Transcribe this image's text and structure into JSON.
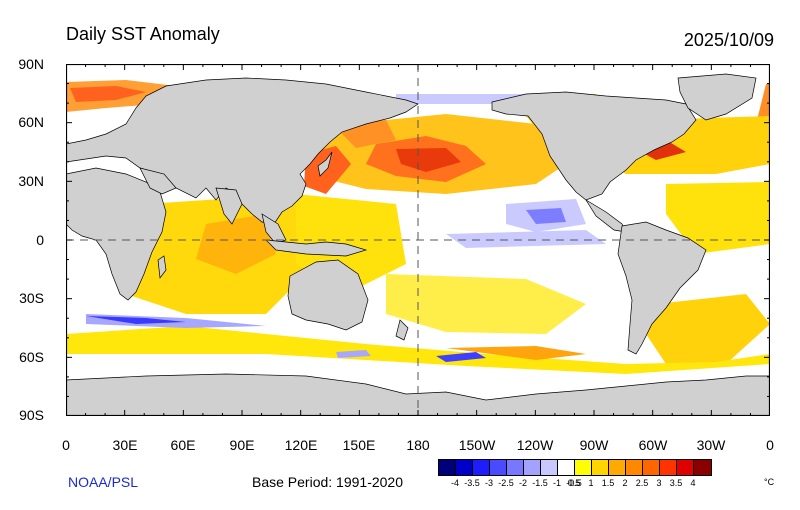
{
  "title": "Daily SST Anomaly",
  "date": "2025/10/09",
  "lat_labels": [
    "90N",
    "60N",
    "30N",
    "0",
    "30S",
    "60S",
    "90S"
  ],
  "lon_labels": [
    "0",
    "30E",
    "60E",
    "90E",
    "120E",
    "150E",
    "180",
    "150W",
    "120W",
    "90W",
    "60W",
    "30W",
    "0"
  ],
  "credit": "NOAA/PSL",
  "base_period": "Base Period: 1991-2020",
  "colorbar": {
    "colors": [
      "#00007a",
      "#0000c8",
      "#1d1dff",
      "#4a4aff",
      "#7777ff",
      "#a3a3ff",
      "#c8c8ff",
      "#ffffff",
      "#ffff00",
      "#ffd400",
      "#ffaa00",
      "#ff8800",
      "#ff6600",
      "#ff3300",
      "#e00000",
      "#8a0000"
    ],
    "labels": [
      "-4",
      "-3.5",
      "-3",
      "-2.5",
      "-2",
      "-1.5",
      "-1",
      "-0.5",
      "0.5",
      "1",
      "1.5",
      "2",
      "2.5",
      "3",
      "3.5",
      "4"
    ],
    "unit": "°C"
  }
}
